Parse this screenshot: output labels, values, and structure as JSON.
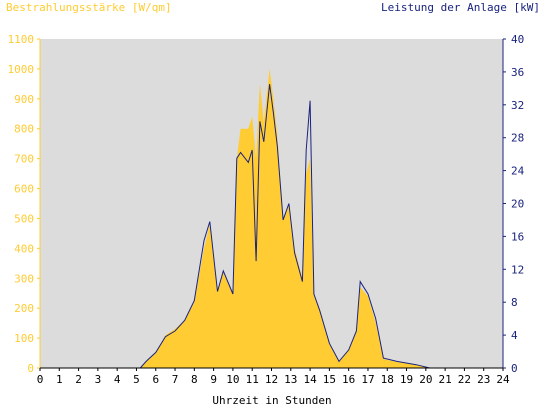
{
  "chart_data": {
    "type": "area",
    "left_title": "Bestrahlungsstärke [W/qm]",
    "right_title": "Leistung der Anlage [kW]",
    "xlabel": "Uhrzeit in Stunden",
    "x_ticks": [
      "0",
      "1",
      "2",
      "3",
      "4",
      "5",
      "6",
      "7",
      "8",
      "9",
      "10",
      "11",
      "12",
      "13",
      "14",
      "15",
      "16",
      "17",
      "18",
      "19",
      "20",
      "21",
      "22",
      "23",
      "24"
    ],
    "xlim": [
      0,
      24
    ],
    "ylim_left": [
      0,
      1100
    ],
    "ylim_right": [
      0,
      40
    ],
    "y_ticks_left": [
      "0",
      "100",
      "200",
      "300",
      "400",
      "500",
      "600",
      "700",
      "800",
      "900",
      "1000",
      "1100"
    ],
    "y_ticks_right": [
      "0",
      "4",
      "8",
      "12",
      "16",
      "20",
      "24",
      "28",
      "32",
      "36",
      "40"
    ],
    "grid": false,
    "colors": {
      "background": "#dcdcdc",
      "irradiance_fill": "#ffcc33",
      "power_line": "#1a237e",
      "left_axis": "#ffcc33",
      "right_axis": "#1a237e"
    },
    "series": [
      {
        "axis": "left",
        "style": "filled-area",
        "points": [
          [
            0,
            0
          ],
          [
            5.2,
            0
          ],
          [
            5.5,
            20
          ],
          [
            6.0,
            50
          ],
          [
            6.5,
            110
          ],
          [
            7.0,
            130
          ],
          [
            7.5,
            160
          ],
          [
            8.0,
            220
          ],
          [
            8.5,
            400
          ],
          [
            8.8,
            480
          ],
          [
            9.2,
            260
          ],
          [
            9.5,
            320
          ],
          [
            10.0,
            250
          ],
          [
            10.2,
            700
          ],
          [
            10.4,
            800
          ],
          [
            10.8,
            800
          ],
          [
            11.0,
            840
          ],
          [
            11.2,
            700
          ],
          [
            11.4,
            950
          ],
          [
            11.6,
            820
          ],
          [
            11.9,
            1000
          ],
          [
            12.1,
            900
          ],
          [
            12.3,
            780
          ],
          [
            12.6,
            500
          ],
          [
            12.9,
            550
          ],
          [
            13.2,
            400
          ],
          [
            13.6,
            300
          ],
          [
            13.8,
            650
          ],
          [
            14.0,
            700
          ],
          [
            14.2,
            250
          ],
          [
            14.5,
            200
          ],
          [
            15.0,
            80
          ],
          [
            15.5,
            20
          ],
          [
            16.0,
            60
          ],
          [
            16.4,
            120
          ],
          [
            16.6,
            270
          ],
          [
            17.0,
            240
          ],
          [
            17.4,
            150
          ],
          [
            17.8,
            30
          ],
          [
            18.5,
            20
          ],
          [
            19.5,
            10
          ],
          [
            20.2,
            0
          ],
          [
            24,
            0
          ]
        ]
      },
      {
        "axis": "right",
        "style": "line",
        "points": [
          [
            0,
            0
          ],
          [
            5.2,
            0
          ],
          [
            5.5,
            0.8
          ],
          [
            6.0,
            1.9
          ],
          [
            6.5,
            3.8
          ],
          [
            7.0,
            4.5
          ],
          [
            7.5,
            5.8
          ],
          [
            8.0,
            8.2
          ],
          [
            8.5,
            15.5
          ],
          [
            8.8,
            17.8
          ],
          [
            9.2,
            9.3
          ],
          [
            9.5,
            11.8
          ],
          [
            10.0,
            9.0
          ],
          [
            10.2,
            25.5
          ],
          [
            10.4,
            26.2
          ],
          [
            10.8,
            25.0
          ],
          [
            11.0,
            26.5
          ],
          [
            11.2,
            13.0
          ],
          [
            11.4,
            30.0
          ],
          [
            11.6,
            27.5
          ],
          [
            11.9,
            34.5
          ],
          [
            12.1,
            31.0
          ],
          [
            12.3,
            27.0
          ],
          [
            12.6,
            18.0
          ],
          [
            12.9,
            20.0
          ],
          [
            13.2,
            14.0
          ],
          [
            13.6,
            10.5
          ],
          [
            13.8,
            26.5
          ],
          [
            14.0,
            32.5
          ],
          [
            14.2,
            9.0
          ],
          [
            14.5,
            7.0
          ],
          [
            15.0,
            3.0
          ],
          [
            15.5,
            0.8
          ],
          [
            16.0,
            2.2
          ],
          [
            16.4,
            4.5
          ],
          [
            16.6,
            10.5
          ],
          [
            17.0,
            9.0
          ],
          [
            17.4,
            6.0
          ],
          [
            17.8,
            1.2
          ],
          [
            18.5,
            0.8
          ],
          [
            19.5,
            0.4
          ],
          [
            20.2,
            0
          ],
          [
            24,
            0
          ]
        ]
      }
    ]
  }
}
